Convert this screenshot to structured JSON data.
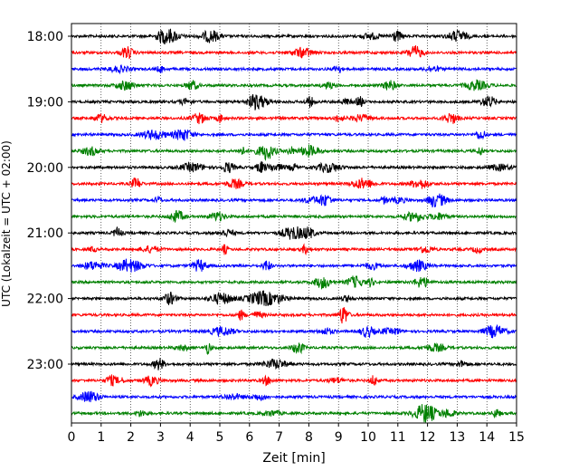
{
  "chart_data": {
    "type": "line",
    "title": "",
    "xlabel": "Zeit  [min]",
    "ylabel": "UTC (Lokalzeit = UTC + 02:00)",
    "xlim": [
      0,
      15
    ],
    "x_ticks": [
      "0",
      "1",
      "2",
      "3",
      "4",
      "5",
      "6",
      "7",
      "8",
      "9",
      "10",
      "11",
      "12",
      "13",
      "14",
      "15"
    ],
    "y_tick_labels": [
      "18:00",
      "19:00",
      "20:00",
      "21:00",
      "22:00",
      "23:00"
    ],
    "grid": "vertical dotted",
    "trace_colors": [
      "#000000",
      "#ff0000",
      "#0000ff",
      "#008000"
    ],
    "traces": [
      {
        "start": "18:00",
        "color": "#000000"
      },
      {
        "start": "18:15",
        "color": "#ff0000"
      },
      {
        "start": "18:30",
        "color": "#0000ff"
      },
      {
        "start": "18:45",
        "color": "#008000"
      },
      {
        "start": "19:00",
        "color": "#000000"
      },
      {
        "start": "19:15",
        "color": "#ff0000"
      },
      {
        "start": "19:30",
        "color": "#0000ff"
      },
      {
        "start": "19:45",
        "color": "#008000"
      },
      {
        "start": "20:00",
        "color": "#000000"
      },
      {
        "start": "20:15",
        "color": "#ff0000"
      },
      {
        "start": "20:30",
        "color": "#0000ff"
      },
      {
        "start": "20:45",
        "color": "#008000"
      },
      {
        "start": "21:00",
        "color": "#000000"
      },
      {
        "start": "21:15",
        "color": "#ff0000"
      },
      {
        "start": "21:30",
        "color": "#0000ff"
      },
      {
        "start": "21:45",
        "color": "#008000"
      },
      {
        "start": "22:00",
        "color": "#000000"
      },
      {
        "start": "22:15",
        "color": "#ff0000"
      },
      {
        "start": "22:30",
        "color": "#0000ff"
      },
      {
        "start": "22:45",
        "color": "#008000"
      },
      {
        "start": "23:00",
        "color": "#000000"
      },
      {
        "start": "23:15",
        "color": "#ff0000"
      },
      {
        "start": "23:30",
        "color": "#0000ff"
      },
      {
        "start": "23:45",
        "color": "#008000"
      }
    ]
  }
}
